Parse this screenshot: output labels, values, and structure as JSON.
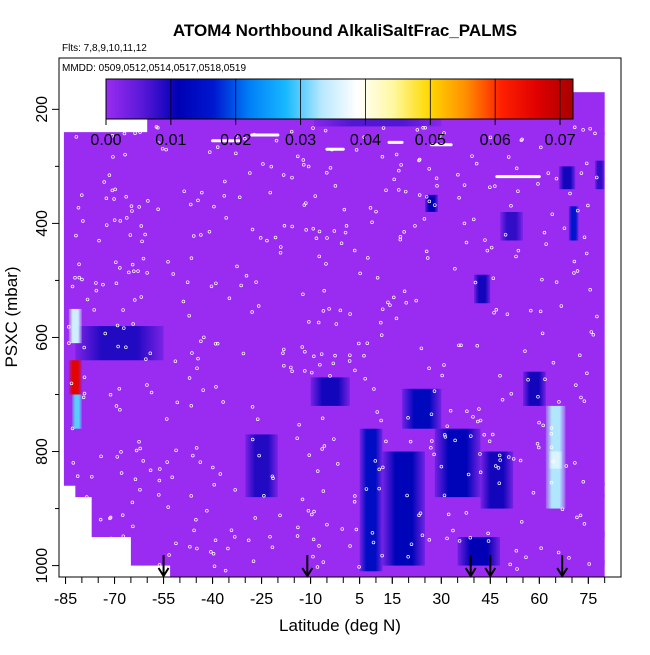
{
  "chart_data": {
    "type": "heatmap",
    "title": "ATOM4 Northbound AlkaliSaltFrac_PALMS",
    "flights_label": "Flts: 7,8,9,10,11,12",
    "dates_label": "MMDD: 0509,0512,0514,0517,0518,0519",
    "xlabel": "Latitude (deg N)",
    "ylabel": "PSXC (mbar)",
    "xlim": [
      -87,
      85
    ],
    "ylim": [
      1020,
      110
    ],
    "y_reversed": true,
    "x_ticks": [
      "-85",
      "-70",
      "-55",
      "-40",
      "-25",
      "-10",
      "5",
      "15",
      "30",
      "45",
      "60",
      "75"
    ],
    "x_tick_values": [
      -85,
      -70,
      -55,
      -40,
      -25,
      -10,
      5,
      15,
      30,
      45,
      60,
      75
    ],
    "y_ticks": [
      "200",
      "400",
      "600",
      "800",
      "1000"
    ],
    "y_tick_values": [
      200,
      400,
      600,
      800,
      1000
    ],
    "colorbar": {
      "min": 0.0,
      "max": 0.072,
      "tick_labels": [
        "0.00",
        "0.01",
        "0.02",
        "0.03",
        "0.04",
        "0.05",
        "0.06",
        "0.07"
      ],
      "tick_values": [
        0.0,
        0.01,
        0.02,
        0.03,
        0.04,
        0.05,
        0.06,
        0.07
      ],
      "colors": [
        "#9a2cf2",
        "#5a18d8",
        "#0000b4",
        "#0018d0",
        "#0080f8",
        "#18b8ff",
        "#b8e8ff",
        "#ffffff",
        "#fff8a0",
        "#ffd800",
        "#ff9000",
        "#ff2000",
        "#e00000",
        "#a80000"
      ]
    },
    "background_value": 0.0,
    "background_color": "#9a2cf2",
    "arrow_latitudes": [
      -55,
      -11,
      39,
      45,
      67
    ],
    "regions": [
      {
        "lat": [
          -60,
          80
        ],
        "p": [
          170,
          230
        ],
        "value": 0.0
      },
      {
        "lat": [
          -9,
          30
        ],
        "p": [
          170,
          230
        ],
        "value": 0.006
      },
      {
        "lat": [
          -82,
          -55
        ],
        "p": [
          580,
          640
        ],
        "value": 0.009
      },
      {
        "lat": [
          -84,
          -80
        ],
        "p": [
          550,
          610
        ],
        "value": 0.035
      },
      {
        "lat": [
          -84,
          -80
        ],
        "p": [
          640,
          700
        ],
        "value": 0.066
      },
      {
        "lat": [
          -83,
          -80
        ],
        "p": [
          700,
          760
        ],
        "value": 0.03
      },
      {
        "lat": [
          -30,
          -20
        ],
        "p": [
          770,
          880
        ],
        "value": 0.009
      },
      {
        "lat": [
          -10,
          2
        ],
        "p": [
          670,
          720
        ],
        "value": 0.01
      },
      {
        "lat": [
          5,
          12
        ],
        "p": [
          760,
          1010
        ],
        "value": 0.014
      },
      {
        "lat": [
          12,
          25
        ],
        "p": [
          800,
          1000
        ],
        "value": 0.012
      },
      {
        "lat": [
          18,
          30
        ],
        "p": [
          690,
          760
        ],
        "value": 0.013
      },
      {
        "lat": [
          28,
          42
        ],
        "p": [
          760,
          880
        ],
        "value": 0.012
      },
      {
        "lat": [
          42,
          52
        ],
        "p": [
          800,
          900
        ],
        "value": 0.01
      },
      {
        "lat": [
          35,
          48
        ],
        "p": [
          950,
          1000
        ],
        "value": 0.011
      },
      {
        "lat": [
          55,
          62
        ],
        "p": [
          660,
          720
        ],
        "value": 0.01
      },
      {
        "lat": [
          62,
          68
        ],
        "p": [
          720,
          900
        ],
        "value": 0.033
      },
      {
        "lat": [
          63,
          67
        ],
        "p": [
          800,
          830
        ],
        "value": 0.036
      },
      {
        "lat": [
          69,
          72
        ],
        "p": [
          370,
          430
        ],
        "value": 0.016
      },
      {
        "lat": [
          66,
          71
        ],
        "p": [
          300,
          340
        ],
        "value": 0.01
      },
      {
        "lat": [
          25,
          29
        ],
        "p": [
          350,
          380
        ],
        "value": 0.011
      },
      {
        "lat": [
          40,
          45
        ],
        "p": [
          490,
          540
        ],
        "value": 0.01
      },
      {
        "lat": [
          77,
          80
        ],
        "p": [
          290,
          340
        ],
        "value": 0.008
      },
      {
        "lat": [
          48,
          55
        ],
        "p": [
          380,
          430
        ],
        "value": 0.008
      }
    ]
  }
}
